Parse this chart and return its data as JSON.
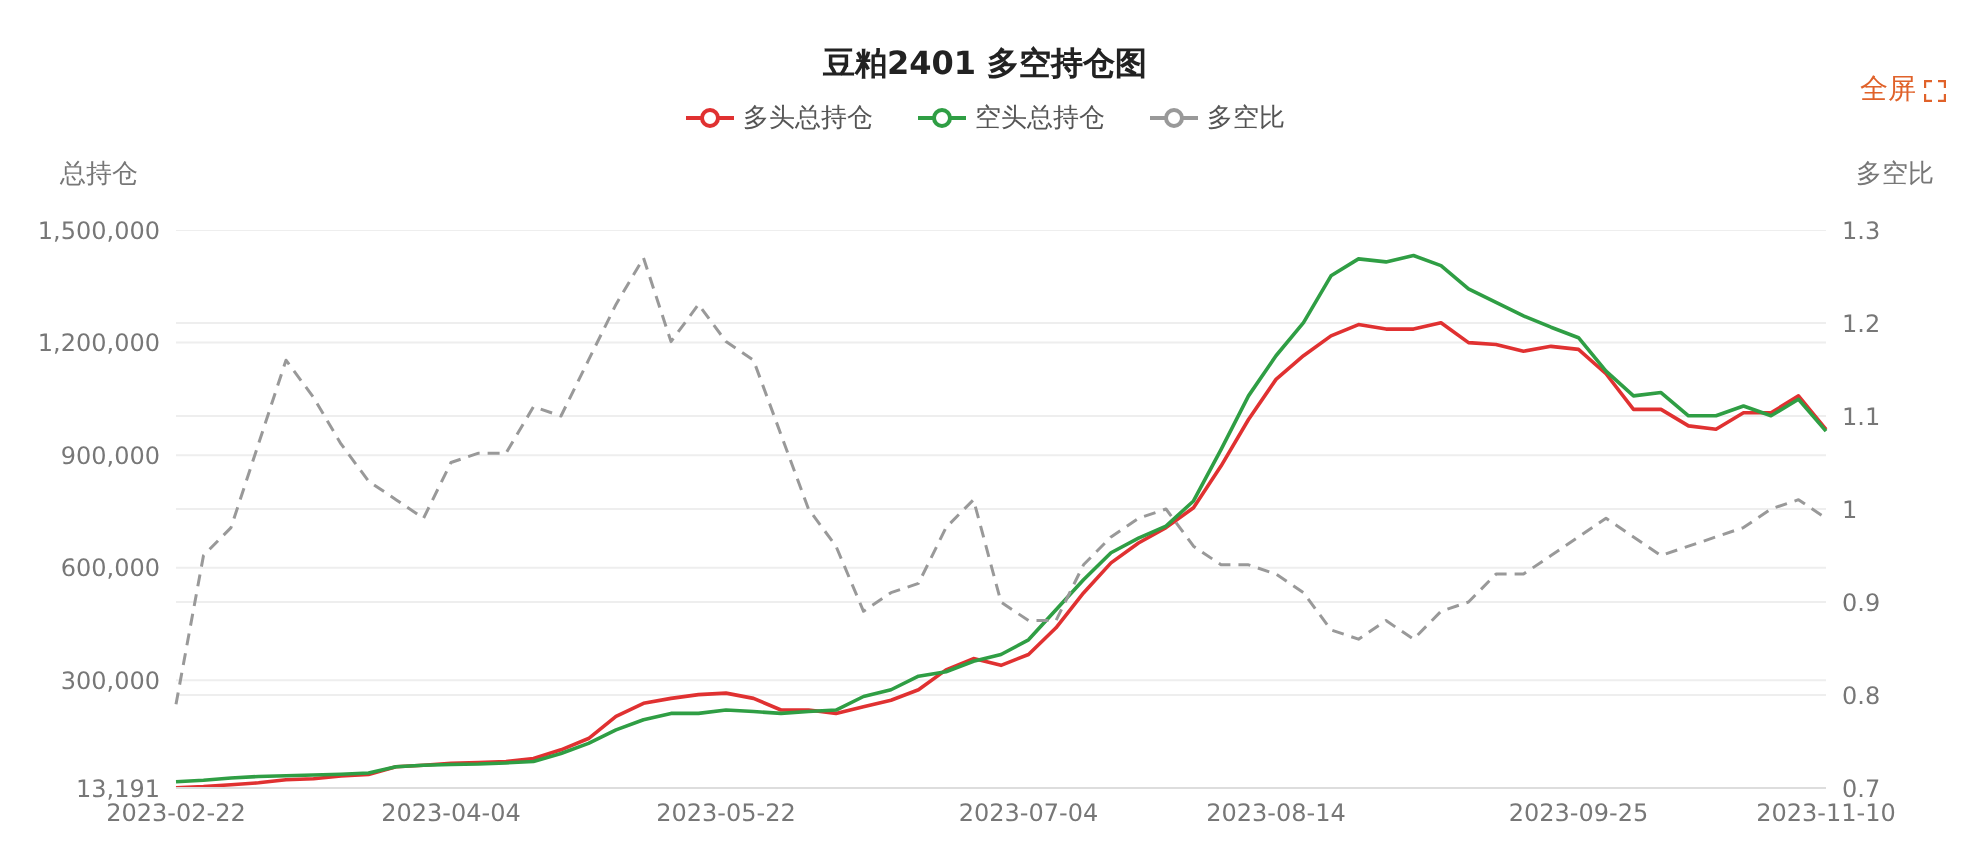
{
  "chart_data": {
    "type": "line",
    "title": "豆粕2401 多空持仓图",
    "ylabel": "总持仓",
    "y2label": "多空比",
    "annotations": [
      "全屏"
    ],
    "categories": [
      "2023-02-22",
      null,
      null,
      null,
      null,
      null,
      null,
      null,
      null,
      null,
      "2023-04-04",
      null,
      null,
      null,
      null,
      null,
      null,
      null,
      null,
      null,
      "2023-05-22",
      null,
      null,
      null,
      null,
      null,
      null,
      null,
      null,
      null,
      null,
      "2023-07-04",
      null,
      null,
      null,
      null,
      null,
      null,
      null,
      null,
      "2023-08-14",
      null,
      null,
      null,
      null,
      null,
      null,
      null,
      null,
      null,
      null,
      "2023-09-25",
      null,
      null,
      null,
      null,
      null,
      null,
      null,
      null,
      "2023-11-10"
    ],
    "series": [
      {
        "name": "多头总持仓",
        "color": "#e03131",
        "line_style": "solid",
        "values": [
          14000,
          17000,
          22000,
          27000,
          35000,
          38000,
          45000,
          49000,
          70000,
          74000,
          79000,
          81000,
          84000,
          92000,
          115000,
          145000,
          204000,
          239000,
          252000,
          262000,
          266000,
          252000,
          221000,
          221000,
          212000,
          230000,
          247000,
          275000,
          328000,
          358000,
          340000,
          369000,
          440000,
          533000,
          613000,
          666000,
          707000,
          760000,
          871000,
          995000,
          1102000,
          1165000,
          1218000,
          1248000,
          1236000,
          1236000,
          1253000,
          1200000,
          1195000,
          1177000,
          1190000,
          1182000,
          1117000,
          1022000,
          1022000,
          978000,
          969000,
          1013000,
          1013000,
          1058000,
          969000
        ]
      },
      {
        "name": "空头总持仓",
        "color": "#2f9e44",
        "line_style": "solid",
        "values": [
          30000,
          34000,
          40000,
          44000,
          46000,
          48000,
          50000,
          53000,
          70000,
          74000,
          76000,
          77000,
          80000,
          84000,
          105000,
          132000,
          168000,
          195000,
          212000,
          212000,
          221000,
          217000,
          212000,
          217000,
          221000,
          257000,
          275000,
          311000,
          323000,
          351000,
          369000,
          408000,
          488000,
          568000,
          640000,
          679000,
          711000,
          778000,
          915000,
          1058000,
          1165000,
          1253000,
          1378000,
          1423000,
          1415000,
          1432000,
          1405000,
          1343000,
          1307000,
          1271000,
          1241000,
          1213000,
          1124000,
          1058000,
          1067000,
          1005000,
          1005000,
          1031000,
          1005000,
          1049000,
          964000
        ]
      },
      {
        "name": "多空比",
        "color": "#999999",
        "line_style": "dashed",
        "axis": "y2",
        "values": [
          0.79,
          0.95,
          0.98,
          1.07,
          1.16,
          1.12,
          1.07,
          1.03,
          1.01,
          0.99,
          1.05,
          1.06,
          1.06,
          1.11,
          1.1,
          1.16,
          1.22,
          1.27,
          1.18,
          1.22,
          1.18,
          1.16,
          1.08,
          1.0,
          0.96,
          0.89,
          0.91,
          0.92,
          0.98,
          1.01,
          0.9,
          0.88,
          0.88,
          0.94,
          0.97,
          0.99,
          1.0,
          0.96,
          0.94,
          0.94,
          0.93,
          0.91,
          0.87,
          0.86,
          0.88,
          0.86,
          0.89,
          0.9,
          0.93,
          0.93,
          0.95,
          0.97,
          0.99,
          0.97,
          0.95,
          0.96,
          0.97,
          0.98,
          1.0,
          1.01,
          0.99
        ]
      }
    ],
    "ylim": [
      13191,
      1500000
    ],
    "yticks": [
      {
        "value": 13191,
        "label": "13,191"
      },
      {
        "value": 300000,
        "label": "300,000"
      },
      {
        "value": 600000,
        "label": "600,000"
      },
      {
        "value": 900000,
        "label": "900,000"
      },
      {
        "value": 1200000,
        "label": "1,200,000"
      },
      {
        "value": 1500000,
        "label": "1,500,000"
      }
    ],
    "y2lim": [
      0.7,
      1.3
    ],
    "y2ticks": [
      0.7,
      0.8,
      0.9,
      1,
      1.1,
      1.2,
      1.3
    ],
    "grid": "y",
    "legend": "top",
    "marker": "none"
  }
}
